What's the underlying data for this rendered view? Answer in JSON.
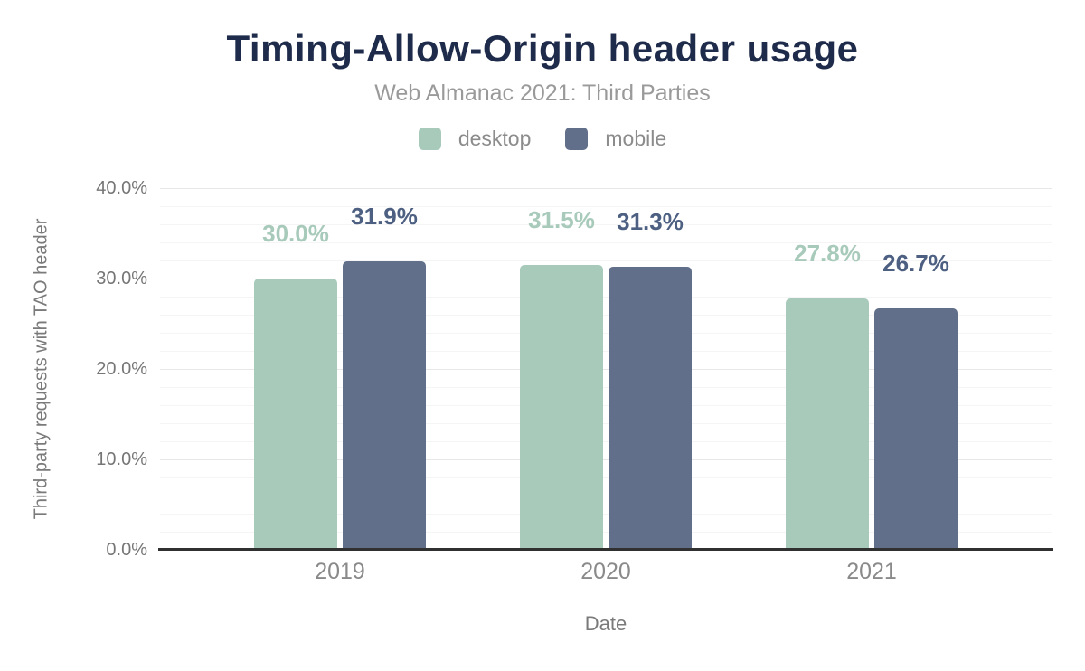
{
  "chart_data": {
    "type": "bar",
    "title": "Timing-Allow-Origin header usage",
    "subtitle": "Web Almanac 2021: Third Parties",
    "xlabel": "Date",
    "ylabel": "Third-party requests with TAO header",
    "categories": [
      "2019",
      "2020",
      "2021"
    ],
    "series": [
      {
        "name": "desktop",
        "values": [
          30.0,
          31.5,
          27.8
        ],
        "value_labels": [
          "30.0%",
          "31.5%",
          "27.8%"
        ],
        "color": "#a8cabb",
        "label_color": "#a8cabb"
      },
      {
        "name": "mobile",
        "values": [
          31.9,
          31.3,
          26.7
        ],
        "value_labels": [
          "31.9%",
          "31.3%",
          "26.7%"
        ],
        "color": "#616f8b",
        "label_color": "#4d6082"
      }
    ],
    "ylim": [
      0,
      40
    ],
    "y_ticks": [
      "0.0%",
      "10.0%",
      "20.0%",
      "30.0%",
      "40.0%"
    ],
    "grid": "horizontal minor every 2%, major every 10%",
    "legend_position": "top-center"
  },
  "style_colors": {
    "title": "#1e2b4a",
    "subtitle": "#9a9a9a",
    "axis_text": "#767676",
    "axis_line": "#303030",
    "gridline_minor": "#f5f5f5",
    "gridline_major": "#e8e8e8",
    "background": "#ffffff"
  }
}
